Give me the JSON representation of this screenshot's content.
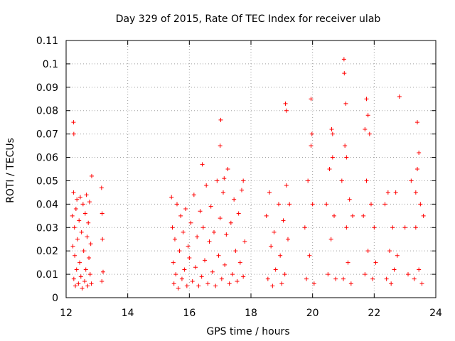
{
  "chart_data": {
    "type": "scatter",
    "title": "Day 329 of 2015, Rate Of TEC Index for receiver ulab",
    "xlabel": "GPS time / hours",
    "ylabel": "ROTI / TECUs",
    "xlim": [
      12,
      24
    ],
    "ylim": [
      0,
      0.11
    ],
    "xticks": [
      12,
      14,
      16,
      18,
      20,
      22,
      24
    ],
    "xtick_labels": [
      "12",
      "14",
      "16",
      "18",
      "20",
      "22",
      "24"
    ],
    "yticks": [
      0,
      0.01,
      0.02,
      0.03,
      0.04,
      0.05,
      0.06,
      0.07,
      0.08,
      0.09,
      0.1,
      0.11
    ],
    "ytick_labels": [
      "0",
      "0.01",
      "0.02",
      "0.03",
      "0.04",
      "0.05",
      "0.06",
      "0.07",
      "0.08",
      "0.09",
      "0.1",
      "0.11"
    ],
    "grid": true,
    "marker": "+",
    "color": "#ff0000",
    "series": [
      {
        "name": "ROTI",
        "x": [
          12.2,
          12.22,
          12.24,
          12.25,
          12.27,
          12.28,
          12.3,
          12.32,
          12.34,
          12.35,
          12.37,
          12.4,
          12.42,
          12.44,
          12.46,
          12.48,
          12.5,
          12.52,
          12.55,
          12.57,
          12.6,
          12.62,
          12.64,
          12.66,
          12.68,
          12.7,
          12.72,
          12.74,
          12.76,
          12.78,
          12.8,
          12.82,
          12.24,
          12.25,
          12.83,
          13.15,
          13.17,
          13.18,
          13.2,
          13.16,
          15.42,
          15.45,
          15.48,
          15.5,
          15.53,
          15.56,
          15.6,
          15.64,
          15.68,
          15.72,
          15.76,
          15.8,
          15.84,
          15.88,
          15.92,
          15.96,
          16.0,
          16.05,
          16.1,
          16.15,
          16.2,
          16.25,
          16.3,
          16.35,
          16.4,
          16.45,
          16.5,
          16.55,
          16.6,
          16.65,
          16.7,
          16.75,
          16.8,
          16.85,
          16.9,
          16.95,
          17.0,
          17.05,
          17.1,
          17.15,
          17.2,
          17.25,
          17.3,
          17.35,
          17.4,
          17.45,
          17.5,
          17.55,
          17.6,
          17.65,
          17.7,
          17.75,
          17.8,
          16.42,
          17.02,
          17.0,
          17.13,
          17.75,
          18.5,
          18.55,
          18.6,
          18.65,
          18.7,
          18.75,
          18.8,
          18.9,
          18.95,
          19.0,
          19.05,
          19.1,
          19.15,
          19.2,
          19.25,
          19.12,
          19.15,
          19.75,
          19.8,
          19.85,
          19.9,
          19.95,
          20.0,
          20.05,
          19.98,
          19.95,
          20.45,
          20.5,
          20.55,
          20.6,
          20.65,
          20.7,
          20.75,
          20.62,
          20.65,
          20.95,
          21.0,
          21.05,
          21.1,
          21.15,
          21.2,
          21.25,
          21.3,
          21.02,
          21.03,
          21.08,
          21.1,
          21.65,
          21.7,
          21.75,
          21.8,
          21.85,
          21.9,
          21.95,
          22.0,
          22.05,
          21.75,
          21.8,
          21.7,
          22.35,
          22.4,
          22.45,
          22.5,
          22.55,
          22.6,
          22.65,
          22.7,
          22.75,
          22.82,
          23.0,
          23.1,
          23.2,
          23.3,
          23.35,
          23.4,
          23.45,
          23.5,
          23.55,
          23.6,
          23.4,
          23.45,
          23.35
        ],
        "y": [
          0.035,
          0.022,
          0.045,
          0.008,
          0.03,
          0.018,
          0.005,
          0.038,
          0.012,
          0.042,
          0.025,
          0.006,
          0.033,
          0.015,
          0.043,
          0.009,
          0.028,
          0.004,
          0.04,
          0.02,
          0.007,
          0.036,
          0.012,
          0.044,
          0.026,
          0.005,
          0.032,
          0.017,
          0.041,
          0.01,
          0.023,
          0.006,
          0.075,
          0.07,
          0.052,
          0.047,
          0.036,
          0.025,
          0.011,
          0.007,
          0.043,
          0.03,
          0.015,
          0.006,
          0.025,
          0.01,
          0.04,
          0.004,
          0.02,
          0.035,
          0.008,
          0.028,
          0.012,
          0.038,
          0.005,
          0.022,
          0.017,
          0.032,
          0.007,
          0.044,
          0.013,
          0.026,
          0.005,
          0.037,
          0.009,
          0.03,
          0.016,
          0.048,
          0.006,
          0.024,
          0.039,
          0.011,
          0.028,
          0.005,
          0.05,
          0.018,
          0.034,
          0.008,
          0.045,
          0.014,
          0.027,
          0.055,
          0.006,
          0.032,
          0.01,
          0.042,
          0.02,
          0.007,
          0.036,
          0.015,
          0.046,
          0.009,
          0.024,
          0.057,
          0.076,
          0.065,
          0.051,
          0.05,
          0.035,
          0.008,
          0.045,
          0.022,
          0.005,
          0.028,
          0.012,
          0.04,
          0.018,
          0.006,
          0.033,
          0.01,
          0.048,
          0.025,
          0.04,
          0.083,
          0.08,
          0.03,
          0.008,
          0.05,
          0.018,
          0.065,
          0.04,
          0.006,
          0.07,
          0.085,
          0.04,
          0.01,
          0.055,
          0.025,
          0.07,
          0.035,
          0.008,
          0.072,
          0.06,
          0.05,
          0.008,
          0.065,
          0.03,
          0.015,
          0.042,
          0.006,
          0.035,
          0.102,
          0.096,
          0.083,
          0.06,
          0.035,
          0.01,
          0.05,
          0.02,
          0.07,
          0.04,
          0.008,
          0.03,
          0.015,
          0.085,
          0.078,
          0.072,
          0.04,
          0.008,
          0.045,
          0.02,
          0.006,
          0.03,
          0.012,
          0.045,
          0.018,
          0.086,
          0.03,
          0.01,
          0.05,
          0.008,
          0.03,
          0.055,
          0.012,
          0.04,
          0.006,
          0.035,
          0.075,
          0.062,
          0.045
        ]
      }
    ]
  }
}
